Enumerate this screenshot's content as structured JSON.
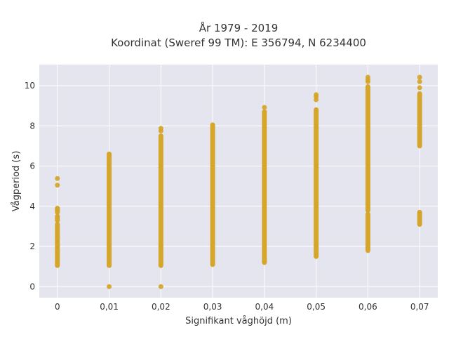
{
  "chart_data": {
    "type": "scatter",
    "title_line1": "År 1979 - 2019",
    "title_line2": "Koordinat (Sweref 99 TM): E 356794, N 6234400",
    "xlabel": "Signifikant våghöjd (m)",
    "ylabel": "Vågperiod (s)",
    "xlim": [
      -0.0035,
      0.0735
    ],
    "ylim": [
      -0.55,
      11.05
    ],
    "x_ticks": [
      {
        "value": 0,
        "label": "0"
      },
      {
        "value": 0.01,
        "label": "0,01"
      },
      {
        "value": 0.02,
        "label": "0,02"
      },
      {
        "value": 0.03,
        "label": "0,03"
      },
      {
        "value": 0.04,
        "label": "0,04"
      },
      {
        "value": 0.05,
        "label": "0,05"
      },
      {
        "value": 0.06,
        "label": "0,06"
      },
      {
        "value": 0.07,
        "label": "0,07"
      }
    ],
    "y_ticks": [
      {
        "value": 0,
        "label": "0"
      },
      {
        "value": 2,
        "label": "2"
      },
      {
        "value": 4,
        "label": "4"
      },
      {
        "value": 6,
        "label": "6"
      },
      {
        "value": 8,
        "label": "8"
      },
      {
        "value": 10,
        "label": "10"
      }
    ],
    "grid": true,
    "marker_color": "#d4a321",
    "plot_bg": "#e5e5f0",
    "columns": [
      {
        "x": 0,
        "ranges": [
          [
            1.05,
            1.9
          ],
          [
            2.0,
            2.2
          ],
          [
            2.3,
            3.1
          ],
          [
            3.3,
            3.5
          ],
          [
            3.7,
            3.9
          ]
        ],
        "points": [
          5.05,
          5.38
        ]
      },
      {
        "x": 0.01,
        "ranges": [
          [
            1.05,
            6.6
          ]
        ],
        "points": [
          0.0
        ]
      },
      {
        "x": 0.02,
        "ranges": [
          [
            1.05,
            7.5
          ]
        ],
        "points": [
          0.0,
          7.75,
          7.88
        ]
      },
      {
        "x": 0.03,
        "ranges": [
          [
            1.1,
            8.05
          ]
        ],
        "points": []
      },
      {
        "x": 0.04,
        "ranges": [
          [
            1.2,
            8.7
          ]
        ],
        "points": [
          8.92
        ]
      },
      {
        "x": 0.05,
        "ranges": [
          [
            1.5,
            8.8
          ]
        ],
        "points": [
          9.3,
          9.45,
          9.55
        ]
      },
      {
        "x": 0.06,
        "ranges": [
          [
            1.8,
            3.6
          ],
          [
            3.8,
            9.95
          ]
        ],
        "points": [
          10.2,
          10.3,
          10.42
        ]
      },
      {
        "x": 0.07,
        "ranges": [
          [
            3.1,
            3.7
          ],
          [
            7.0,
            9.6
          ]
        ],
        "points": [
          9.9,
          10.2,
          10.42
        ]
      }
    ]
  }
}
